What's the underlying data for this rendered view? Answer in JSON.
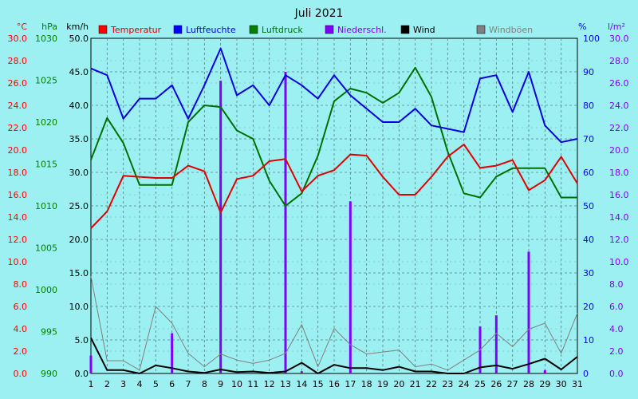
{
  "chart_data": {
    "type": "line",
    "title": "Juli 2021",
    "x": [
      1,
      2,
      3,
      4,
      5,
      6,
      7,
      8,
      9,
      10,
      11,
      12,
      13,
      14,
      15,
      16,
      17,
      18,
      19,
      20,
      21,
      22,
      23,
      24,
      25,
      26,
      27,
      28,
      29,
      30,
      31
    ],
    "x_ticks": [
      "1",
      "2",
      "3",
      "4",
      "5",
      "6",
      "7",
      "8",
      "9",
      "10",
      "11",
      "12",
      "13",
      "14",
      "15",
      "16",
      "17",
      "18",
      "19",
      "20",
      "21",
      "22",
      "23",
      "24",
      "25",
      "26",
      "27",
      "28",
      "29",
      "30",
      "31"
    ],
    "axes": {
      "temp": {
        "unit": "°C",
        "range": [
          0,
          30
        ],
        "ticks": [
          "0.0",
          "2.0",
          "4.0",
          "6.0",
          "8.0",
          "10.0",
          "12.0",
          "14.0",
          "16.0",
          "18.0",
          "20.0",
          "22.0",
          "24.0",
          "26.0",
          "28.0",
          "30.0"
        ],
        "color": "#ff0000"
      },
      "press": {
        "unit": "hPa",
        "range": [
          990,
          1030
        ],
        "ticks": [
          "990",
          "995",
          "1000",
          "1005",
          "1010",
          "1015",
          "1020",
          "1025",
          "1030"
        ],
        "color": "#008000"
      },
      "wind": {
        "unit": "km/h",
        "range": [
          0,
          50
        ],
        "ticks": [
          "0.0",
          "5.0",
          "10.0",
          "15.0",
          "20.0",
          "25.0",
          "30.0",
          "35.0",
          "40.0",
          "45.0",
          "50.0"
        ],
        "color": "#000000"
      },
      "hum": {
        "unit": "%",
        "range": [
          0,
          100
        ],
        "ticks": [
          "0",
          "10",
          "20",
          "30",
          "40",
          "50",
          "60",
          "70",
          "80",
          "90",
          "100"
        ],
        "color": "#0000ff"
      },
      "rain": {
        "unit": "l/m²",
        "range": [
          0,
          30
        ],
        "ticks": [
          "0.0",
          "2.0",
          "4.0",
          "6.0",
          "8.0",
          "10.0",
          "12.0",
          "14.0",
          "16.0",
          "18.0",
          "20.0",
          "22.0",
          "24.0",
          "26.0",
          "28.0",
          "30.0"
        ],
        "color": "#8000ff"
      }
    },
    "series": [
      {
        "name": "Temperatur",
        "axis": "temp",
        "kind": "line",
        "color": "#e00000",
        "values": [
          13.0,
          14.5,
          17.7,
          17.6,
          17.5,
          17.5,
          18.6,
          18.1,
          14.4,
          17.4,
          17.7,
          19.0,
          19.2,
          16.3,
          17.7,
          18.2,
          19.6,
          19.5,
          17.6,
          16.0,
          16.0,
          17.6,
          19.4,
          20.5,
          18.4,
          18.6,
          19.1,
          16.4,
          17.3,
          19.4,
          17.0
        ]
      },
      {
        "name": "Luftfeuchte",
        "axis": "hum",
        "kind": "line",
        "color": "#0000e0",
        "values": [
          91,
          89,
          76,
          82,
          82,
          86,
          76,
          86,
          97,
          83,
          86,
          80,
          89,
          86,
          82,
          89,
          83,
          79,
          75,
          75,
          79,
          74,
          73,
          72,
          88,
          89,
          78,
          90,
          74,
          69,
          70
        ]
      },
      {
        "name": "Luftdruck",
        "axis": "press",
        "kind": "line",
        "color": "#007000",
        "values": [
          1015.5,
          1020.5,
          1017.5,
          1012.5,
          1012.5,
          1012.5,
          1020.0,
          1022.0,
          1021.8,
          1019.0,
          1018.0,
          1013.0,
          1010.0,
          1011.5,
          1016.0,
          1022.5,
          1024.0,
          1023.5,
          1022.3,
          1023.5,
          1026.5,
          1023.0,
          1016.5,
          1011.5,
          1011.0,
          1013.5,
          1014.5,
          1014.5,
          1014.5,
          1011.0,
          1011.0
        ]
      },
      {
        "name": "Niederschl.",
        "axis": "rain",
        "kind": "bar",
        "color": "#8000ff",
        "values": [
          1.6,
          0,
          0,
          0,
          0,
          3.6,
          0,
          0,
          26.2,
          0,
          0,
          0,
          27.0,
          0.2,
          0,
          0,
          15.4,
          0,
          0,
          0,
          0,
          0,
          0,
          0,
          4.2,
          5.2,
          0,
          10.9,
          0.3,
          0,
          0
        ]
      },
      {
        "name": "Wind",
        "axis": "wind",
        "kind": "line",
        "color": "#000000",
        "values": [
          5.3,
          0.5,
          0.5,
          0,
          1.2,
          0.8,
          0.3,
          0.1,
          0.6,
          0.2,
          0.3,
          0.1,
          0.3,
          1.6,
          0,
          1.3,
          0.8,
          0.8,
          0.5,
          1.0,
          0.3,
          0.3,
          0,
          0,
          0.9,
          1.2,
          0.7,
          1.4,
          2.2,
          0.6,
          2.5
        ]
      },
      {
        "name": "Windböen",
        "axis": "wind",
        "kind": "line",
        "color": "#808080",
        "values": [
          14.5,
          1.9,
          1.9,
          0.5,
          10.0,
          7.5,
          3.0,
          1.0,
          2.9,
          2.0,
          1.5,
          2.0,
          3.0,
          7.3,
          1.0,
          6.7,
          4.3,
          2.9,
          3.2,
          3.5,
          1.0,
          1.4,
          0.5,
          2.0,
          3.5,
          6.0,
          4.0,
          6.6,
          7.5,
          3.0,
          9.0
        ]
      }
    ],
    "legend_placement": "top",
    "grid": true
  }
}
